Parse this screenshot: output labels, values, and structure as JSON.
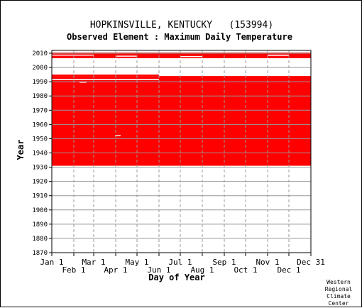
{
  "chart_data": {
    "type": "heatmap",
    "title": "HOPKINSVILLE, KENTUCKY   (153994)",
    "subtitle": "Observed Element : Maximum Daily Temperature",
    "xlabel": "Day of Year",
    "ylabel": "Year",
    "ylim": [
      1870,
      2012
    ],
    "y_ticks": [
      2010,
      2000,
      1990,
      1980,
      1970,
      1960,
      1950,
      1940,
      1930,
      1920,
      1910,
      1900,
      1890,
      1880,
      1870
    ],
    "x_ticks_top": [
      {
        "label": "Jan 1",
        "day": 1
      },
      {
        "label": "Mar 1",
        "day": 60
      },
      {
        "label": "May 1",
        "day": 121
      },
      {
        "label": "Jul 1",
        "day": 182
      },
      {
        "label": "Sep 1",
        "day": 244
      },
      {
        "label": "Nov 1",
        "day": 305
      },
      {
        "label": "Dec 31",
        "day": 366
      }
    ],
    "x_ticks_bottom": [
      {
        "label": "Feb 1",
        "day": 32
      },
      {
        "label": "Apr 1",
        "day": 91
      },
      {
        "label": "Jun 1",
        "day": 152
      },
      {
        "label": "Aug 1",
        "day": 213
      },
      {
        "label": "Oct 1",
        "day": 274
      },
      {
        "label": "Dec 1",
        "day": 335
      }
    ],
    "data_color": "#ff0000",
    "grid": true,
    "observed_blocks": [
      {
        "year_start": 1931,
        "year_end": 1994,
        "day_start": 1,
        "day_end": 366
      },
      {
        "year_start": 1994,
        "year_end": 1995,
        "day_start": 1,
        "day_end": 152
      },
      {
        "year_start": 2006.5,
        "year_end": 2009.5,
        "day_start": 1,
        "day_end": 366
      },
      {
        "year_start": 2009.5,
        "year_end": 2010.5,
        "day_start": 1,
        "day_end": 366
      }
    ],
    "missing_gaps": [
      {
        "year_start": 1991.2,
        "year_end": 1992.0,
        "day_start": 1,
        "day_end": 152
      },
      {
        "year_start": 1989.3,
        "year_end": 1990.0,
        "day_start": 40,
        "day_end": 50
      },
      {
        "year_start": 2008.3,
        "year_end": 2009.0,
        "day_start": 1,
        "day_end": 60
      },
      {
        "year_start": 2007.6,
        "year_end": 2008.3,
        "day_start": 92,
        "day_end": 121
      },
      {
        "year_start": 2007.3,
        "year_end": 2008.0,
        "day_start": 182,
        "day_end": 213
      },
      {
        "year_start": 2008.2,
        "year_end": 2009.0,
        "day_start": 305,
        "day_end": 335
      },
      {
        "year_start": 1951.8,
        "year_end": 1952.5,
        "day_start": 90,
        "day_end": 98
      }
    ],
    "credit": [
      "Western",
      "Regional",
      "Climate",
      "Center"
    ]
  }
}
